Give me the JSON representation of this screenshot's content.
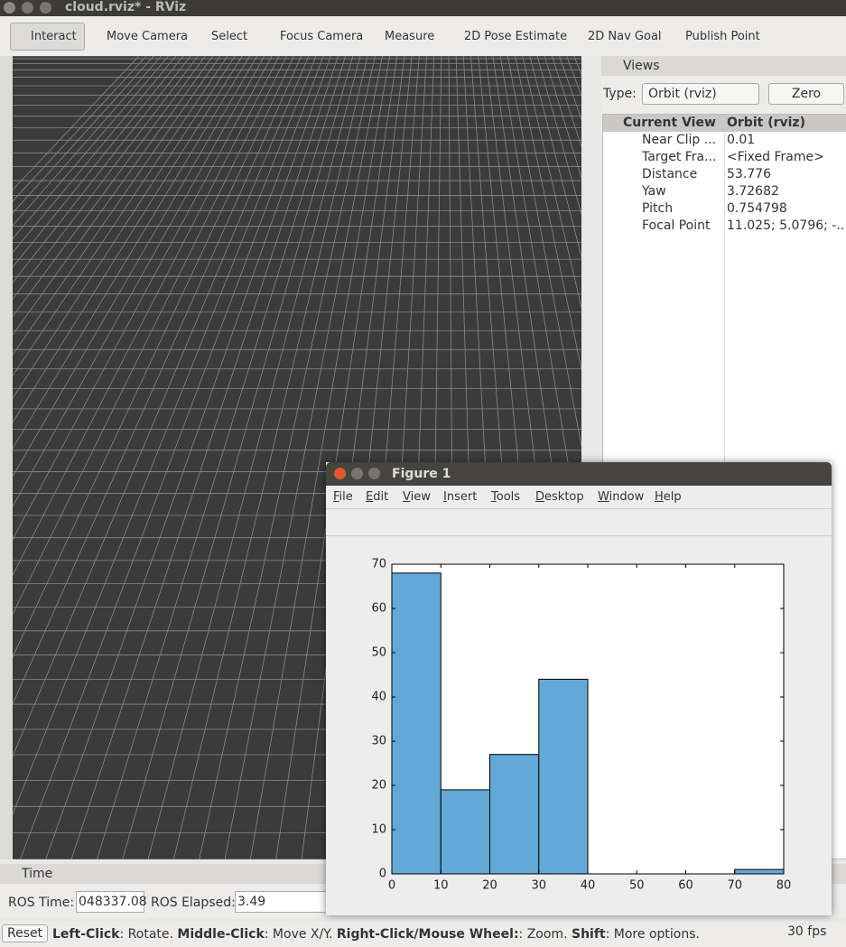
{
  "window_title": "cloud.rviz* - RViz",
  "toolbar": [
    "Interact",
    "Move Camera",
    "Select",
    "Focus Camera",
    "Measure",
    "2D Pose Estimate",
    "2D Nav Goal",
    "Publish Point"
  ],
  "views": {
    "title": "Views",
    "type_label": "Type:",
    "type_value": "Orbit (rviz)",
    "zero": "Zero",
    "header": [
      "Current View",
      "Orbit (rviz)"
    ],
    "rows": [
      [
        "Near Clip ...",
        "0.01"
      ],
      [
        "Target Fra...",
        "<Fixed Frame>"
      ],
      [
        "Distance",
        "53.776"
      ],
      [
        "Yaw",
        "3.72682"
      ],
      [
        "Pitch",
        "0.754798"
      ],
      [
        "Focal Point",
        "11.025; 5.0796; -..."
      ]
    ]
  },
  "time": {
    "title": "Time",
    "ros_time_label": "ROS Time:",
    "ros_time": "048337.08",
    "ros_elapsed_label": "ROS Elapsed:",
    "ros_elapsed": "3.49"
  },
  "status": {
    "reset": "Reset",
    "hint": [
      "Left-Click",
      ": Rotate. ",
      "Middle-Click",
      ": Move X/Y. ",
      "Right-Click/Mouse Wheel:",
      ": Zoom. ",
      "Shift",
      ": More options."
    ],
    "fps": "30 fps"
  },
  "figure": {
    "title": "Figure 1",
    "menu": [
      "File",
      "Edit",
      "View",
      "Insert",
      "Tools",
      "Desktop",
      "Window",
      "Help"
    ]
  },
  "chart_data": {
    "type": "histogram",
    "bins": [
      0,
      10,
      20,
      30,
      40,
      50,
      60,
      70,
      80
    ],
    "values": [
      68,
      19,
      27,
      44,
      0,
      0,
      0,
      1
    ],
    "color": "#62a9d8",
    "xlim": [
      0,
      80
    ],
    "ylim": [
      0,
      70
    ],
    "xticks": [
      0,
      10,
      20,
      30,
      40,
      50,
      60,
      70,
      80
    ],
    "yticks": [
      0,
      10,
      20,
      30,
      40,
      50,
      60,
      70
    ]
  }
}
